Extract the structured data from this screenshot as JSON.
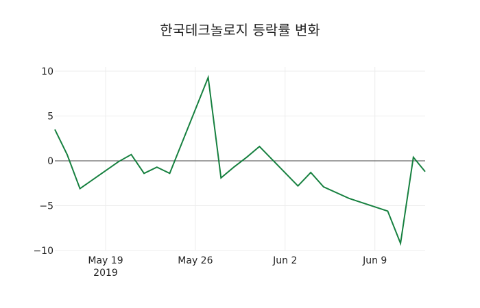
{
  "chart_data": {
    "type": "line",
    "title": "한국테크놀로지 등락률 변화",
    "xlabel": "",
    "ylabel": "",
    "ylim": [
      -10.5,
      10.5
    ],
    "grid": true,
    "legend": null,
    "x_ticks": [
      {
        "label": "May 19",
        "sublabel": "2019",
        "day": 0
      },
      {
        "label": "May 26",
        "sublabel": "",
        "day": 7
      },
      {
        "label": "Jun 2",
        "sublabel": "",
        "day": 14
      },
      {
        "label": "Jun 9",
        "sublabel": "",
        "day": 21
      }
    ],
    "y_ticks": [
      10,
      5,
      0,
      -5,
      -10
    ],
    "line_color": "#16803f",
    "series": [
      {
        "name": "등락률",
        "x": [
          "2019-05-15",
          "2019-05-16",
          "2019-05-17",
          "2019-05-20",
          "2019-05-21",
          "2019-05-22",
          "2019-05-23",
          "2019-05-24",
          "2019-05-27",
          "2019-05-28",
          "2019-05-29",
          "2019-05-30",
          "2019-05-31",
          "2019-06-03",
          "2019-06-04",
          "2019-06-05",
          "2019-06-07",
          "2019-06-10",
          "2019-06-11",
          "2019-06-12",
          "2019-06-13"
        ],
        "day_offset": [
          -4,
          -3,
          -2,
          1,
          2,
          3,
          4,
          5,
          8,
          9,
          10,
          11,
          12,
          15,
          16,
          17,
          19,
          22,
          23,
          24,
          25
        ],
        "values": [
          3.5,
          0.7,
          -3.1,
          -0.1,
          0.7,
          -1.4,
          -0.7,
          -1.4,
          9.3,
          -1.9,
          -0.7,
          0.4,
          1.6,
          -2.8,
          -1.3,
          -2.9,
          -4.2,
          -5.6,
          -9.2,
          0.4,
          -1.2
        ]
      }
    ]
  }
}
